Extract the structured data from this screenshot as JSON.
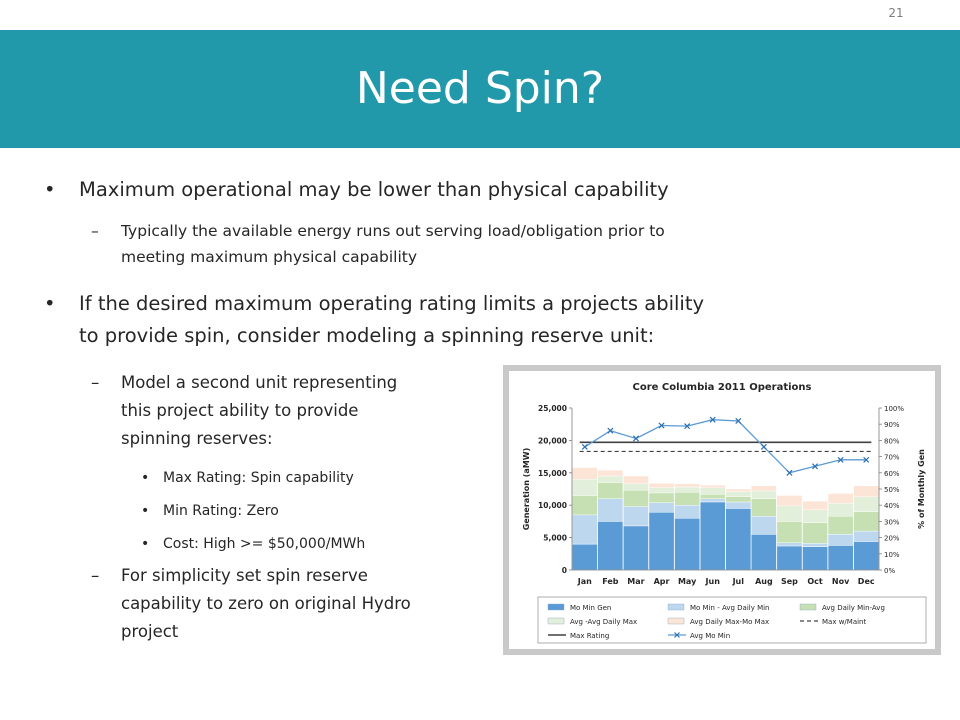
{
  "slide": {
    "page_number": "21",
    "title": "Need Spin?"
  },
  "bullets": {
    "b1": "Maximum operational may be lower than physical capability",
    "b1_sub1_l1": "Typically the available energy runs out serving load/obligation prior to",
    "b1_sub1_l2": "meeting maximum physical capability",
    "b2_l1": "If the desired maximum operating rating limits a projects ability",
    "b2_l2": "to provide spin, consider modeling a spinning reserve unit:",
    "b2_sub1_l1": "Model a second unit representing",
    "b2_sub1_l2": "this project ability to provide",
    "b2_sub1_l3": "spinning reserves:",
    "b2_sub1_items": [
      "Max Rating: Spin capability",
      "Min Rating: Zero",
      "Cost: High >= $50,000/MWh"
    ],
    "b2_sub2_l1": "For simplicity set spin reserve",
    "b2_sub2_l2": "capability to zero on original Hydro",
    "b2_sub2_l3": "project",
    "bullet_glyph": "•",
    "dash_glyph": "–"
  },
  "chart_data": {
    "type": "bar",
    "title": "Core Columbia 2011 Operations",
    "ylabel": "Generation (aMW)",
    "y2label": "% of Monthly Gen",
    "categories": [
      "Jan",
      "Feb",
      "Mar",
      "Apr",
      "May",
      "Jun",
      "Jul",
      "Aug",
      "Sep",
      "Oct",
      "Nov",
      "Dec"
    ],
    "ylim": [
      0,
      25000
    ],
    "y_ticks": [
      "0",
      "5,000",
      "10,000",
      "15,000",
      "20,000",
      "25,000"
    ],
    "y2lim": [
      0,
      100
    ],
    "y2_ticks": [
      "0%",
      "10%",
      "20%",
      "30%",
      "40%",
      "50%",
      "60%",
      "70%",
      "80%",
      "90%",
      "100%"
    ],
    "stacked_series": [
      {
        "name": "Mo Min Gen",
        "color": "#5b9bd5",
        "values": [
          4000,
          7500,
          6800,
          8900,
          8000,
          10500,
          9500,
          5500,
          3700,
          3600,
          3800,
          4400
        ]
      },
      {
        "name": "Mo Min - Avg Daily Min",
        "color": "#bdd7ee",
        "values": [
          4500,
          3500,
          3000,
          1500,
          2000,
          500,
          1000,
          2800,
          500,
          500,
          1700,
          1600
        ]
      },
      {
        "name": "Avg Daily Min-Avg",
        "color": "#c6e0b4",
        "values": [
          3000,
          2500,
          2500,
          1500,
          2000,
          700,
          800,
          2700,
          3300,
          3200,
          2800,
          3000
        ]
      },
      {
        "name": "Avg -Avg Daily Max",
        "color": "#e2efda",
        "values": [
          2500,
          1000,
          1000,
          800,
          800,
          1000,
          800,
          1200,
          2400,
          2000,
          2000,
          2300
        ]
      },
      {
        "name": "Avg Daily Max-Mo Max",
        "color": "#fce4d6",
        "values": [
          1800,
          900,
          1200,
          700,
          500,
          400,
          400,
          800,
          1600,
          1300,
          1500,
          1700
        ]
      }
    ],
    "lines": [
      {
        "name": "Max Rating",
        "color": "#404040",
        "style": "solid",
        "values": [
          19700,
          19700,
          19700,
          19700,
          19700,
          19700,
          19700,
          19700,
          19700,
          19700,
          19700,
          19700
        ]
      },
      {
        "name": "Max w/Maint",
        "color": "#404040",
        "style": "dashed",
        "values": [
          18300,
          18300,
          18300,
          18300,
          18300,
          18300,
          18300,
          18300,
          18300,
          18300,
          18300,
          18300
        ]
      },
      {
        "name": "Avg Mo Min",
        "color": "#5b9bd5",
        "style": "marker",
        "values": [
          19000,
          21500,
          20300,
          22300,
          22200,
          23200,
          23000,
          19000,
          15000,
          16000,
          17000,
          17000
        ]
      }
    ],
    "legend_position": "bottom",
    "legend_items": [
      {
        "name": "Mo Min Gen",
        "kind": "box",
        "color": "#5b9bd5"
      },
      {
        "name": "Mo Min - Avg Daily Min",
        "kind": "box",
        "color": "#bdd7ee"
      },
      {
        "name": "Avg Daily Min-Avg",
        "kind": "box",
        "color": "#c6e0b4"
      },
      {
        "name": "Avg -Avg Daily Max",
        "kind": "box",
        "color": "#e2efda"
      },
      {
        "name": "Avg Daily Max-Mo Max",
        "kind": "box",
        "color": "#fce4d6"
      },
      {
        "name": "Max w/Maint",
        "kind": "dash",
        "color": "#404040"
      },
      {
        "name": "Max Rating",
        "kind": "line",
        "color": "#404040"
      },
      {
        "name": "Avg Mo Min",
        "kind": "marker",
        "color": "#5b9bd5"
      }
    ],
    "grid": false
  }
}
